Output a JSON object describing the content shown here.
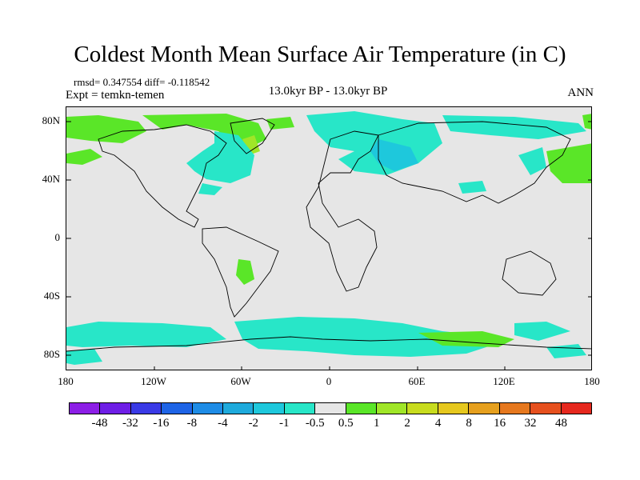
{
  "title": "Coldest Month Mean Surface Air Temperature (in C)",
  "stats": "rmsd= 0.347554 diff= -0.118542",
  "experiment": "Expt = temkn-temen",
  "period": "13.0kyr BP - 13.0kyr BP",
  "season": "ANN",
  "lat_labels": [
    "80N",
    "40N",
    "0",
    "40S",
    "80S"
  ],
  "lon_labels": [
    "180",
    "120W",
    "60W",
    "0",
    "60E",
    "120E",
    "180"
  ],
  "colorbar": {
    "colors": [
      "#8c1ee6",
      "#6e1ee6",
      "#3a3ae6",
      "#1e64e6",
      "#1e8ce6",
      "#1eaadc",
      "#1ec8dc",
      "#28e6c8",
      "#e6e6e6",
      "#5ae628",
      "#a0e628",
      "#c8dc1e",
      "#e6c81e",
      "#e6a01e",
      "#e6781e",
      "#e6501e",
      "#e6281e"
    ],
    "labels": [
      "-48",
      "-32",
      "-16",
      "-8",
      "-4",
      "-2",
      "-1",
      "-0.5",
      "0.5",
      "1",
      "2",
      "4",
      "8",
      "16",
      "32",
      "48"
    ]
  },
  "colors": {
    "background": "#e6e6e6",
    "cool_light": "#28e6c8",
    "cool": "#1ec8dc",
    "warm_light": "#5ae628",
    "warm": "#a0e628"
  }
}
